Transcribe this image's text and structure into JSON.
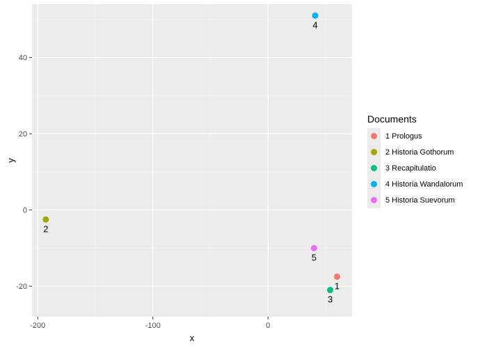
{
  "chart_data": {
    "type": "scatter",
    "title": "",
    "xlabel": "x",
    "ylabel": "y",
    "xlim": [
      -205,
      73
    ],
    "ylim": [
      -28,
      54
    ],
    "x_ticks": [
      -200,
      -100,
      0
    ],
    "x_tick_labels": [
      "-200",
      "-100",
      "0"
    ],
    "y_ticks": [
      -20,
      0,
      20,
      40
    ],
    "y_tick_labels": [
      "-20",
      "0",
      "20",
      "40"
    ],
    "grid": true,
    "legend_title": "Documents",
    "legend_position": "right",
    "series": [
      {
        "name": "1 Prologus",
        "label": "1",
        "color": "#f8766d",
        "x": 60,
        "y": -17.5
      },
      {
        "name": "2 Historia Gothorum",
        "label": "2",
        "color": "#a3a500",
        "x": -193,
        "y": -2.5
      },
      {
        "name": "3 Recapitulatio",
        "label": "3",
        "color": "#00bf7d",
        "x": 54,
        "y": -21
      },
      {
        "name": "4 Historia Wandalorum",
        "label": "4",
        "color": "#00b0f6",
        "x": 41,
        "y": 51
      },
      {
        "name": "5 Historia Suevorum",
        "label": "5",
        "color": "#e76bf3",
        "x": 40,
        "y": -10
      }
    ]
  }
}
